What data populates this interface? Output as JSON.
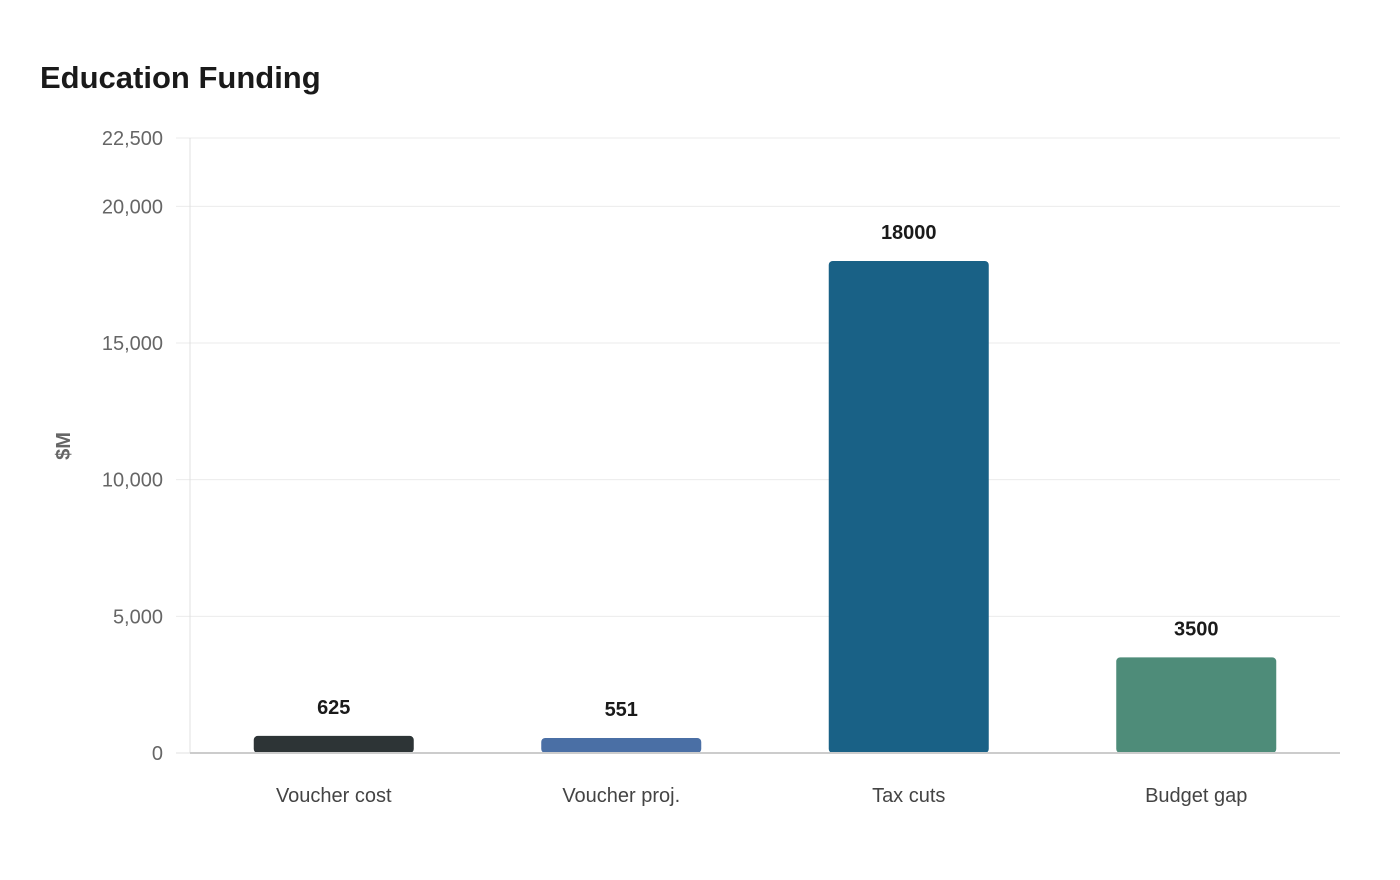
{
  "chart_data": {
    "type": "bar",
    "title": "Education Funding",
    "xlabel": "",
    "ylabel": "$M",
    "categories": [
      "Voucher cost",
      "Voucher proj.",
      "Tax cuts",
      "Budget gap"
    ],
    "values": [
      625,
      551,
      18000,
      3500
    ],
    "data_labels": [
      "625",
      "551",
      "18000",
      "3500"
    ],
    "colors": [
      "#2d3436",
      "#4a6fa5",
      "#196186",
      "#4e8c79"
    ],
    "ylim": [
      0,
      22500
    ],
    "yticks": [
      0,
      5000,
      10000,
      15000,
      20000,
      22500
    ],
    "ytick_labels": [
      "0",
      "5,000",
      "10,000",
      "15,000",
      "20,000",
      "22,500"
    ],
    "grid": true,
    "legend": "none"
  }
}
